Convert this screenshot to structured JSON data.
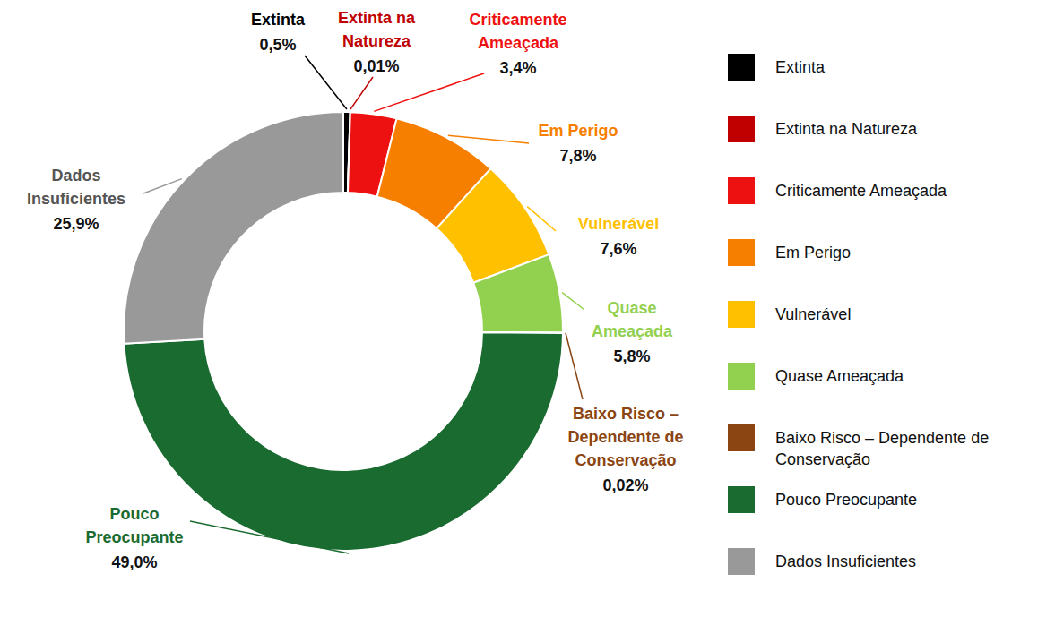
{
  "chart_data": {
    "type": "donut",
    "categories": [
      "Extinta",
      "Extinta na Natureza",
      "Criticamente Ameaçada",
      "Em Perigo",
      "Vulnerável",
      "Quase Ameaçada",
      "Baixo Risco – Dependente de Conservação",
      "Pouco Preocupante",
      "Dados Insuficientes"
    ],
    "values": [
      0.5,
      0.01,
      3.4,
      7.8,
      7.6,
      5.8,
      0.02,
      49.0,
      25.9
    ],
    "value_labels": [
      "0,5%",
      "0,01%",
      "3,4%",
      "7,8%",
      "7,6%",
      "5,8%",
      "0,02%",
      "49,0%",
      "25,9%"
    ],
    "colors": [
      "#000000",
      "#c00000",
      "#ee1111",
      "#f77f00",
      "#ffc000",
      "#92d050",
      "#8b4513",
      "#1a6b30",
      "#999999"
    ],
    "data_labels": true,
    "legend": "right"
  }
}
